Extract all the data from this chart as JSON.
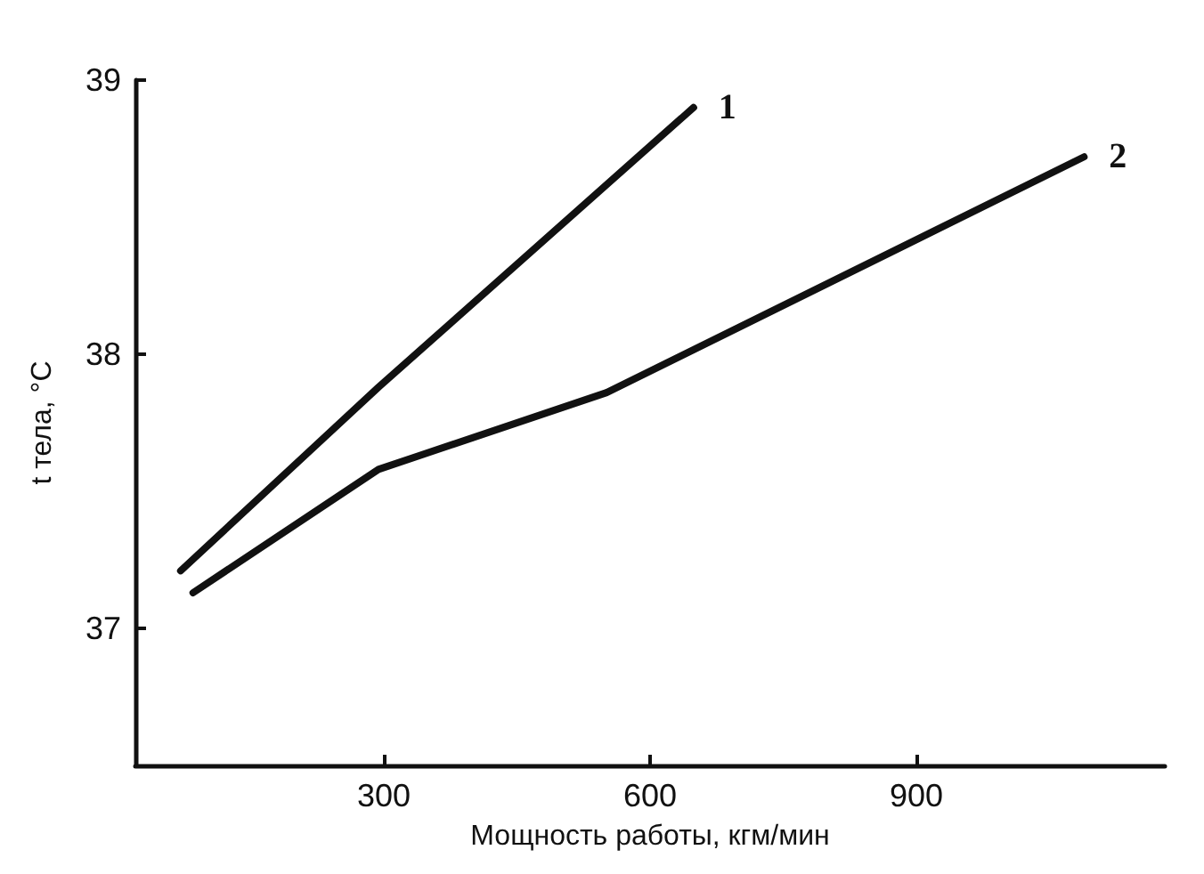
{
  "chart_data": {
    "type": "line",
    "xlabel": "Мощность работы, кгм/мин",
    "ylabel": "t тела, °С",
    "series": [
      {
        "name": "1",
        "color": "#111111",
        "x": [
          71,
          294,
          649
        ],
        "values": [
          37.21,
          37.88,
          38.9
        ]
      },
      {
        "name": "2",
        "color": "#111111",
        "x": [
          85,
          294,
          551,
          1089
        ],
        "values": [
          37.13,
          37.58,
          37.86,
          38.72
        ]
      }
    ],
    "xlim": [
      20,
      1180
    ],
    "xticks": [
      300,
      600,
      900
    ],
    "ylim": [
      36.5,
      39
    ],
    "yticks": [
      37,
      38,
      39
    ],
    "grid": false,
    "legend": false,
    "marker": "none",
    "line_style": "solid"
  }
}
